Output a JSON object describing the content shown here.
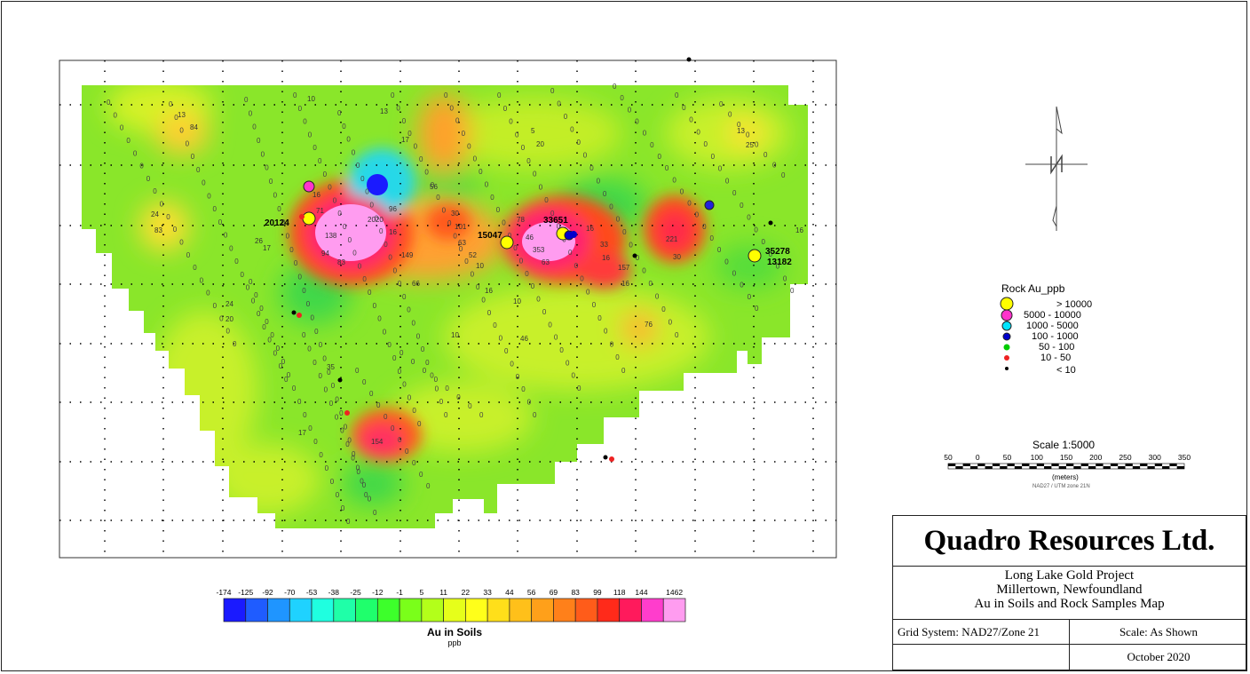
{
  "map": {
    "soil_labels": [
      "0",
      "5",
      "10",
      "13",
      "84",
      "16",
      "17",
      "20",
      "24",
      "25",
      "26",
      "30",
      "33",
      "35",
      "46",
      "52",
      "56",
      "63",
      "66",
      "71",
      "76",
      "78",
      "83",
      "94",
      "96",
      "101",
      "138",
      "149",
      "154",
      "157",
      "221",
      "353",
      "2020"
    ],
    "rock_sample_labels": [
      "20124",
      "15047",
      "33651",
      "35278",
      "13182"
    ]
  },
  "rock_legend": {
    "title": "Rock Au_ppb",
    "items": [
      {
        "label": "> 10000",
        "color": "#ffff00",
        "size": "large"
      },
      {
        "label": "5000  -  10000",
        "color": "#ff33cc",
        "size": "large"
      },
      {
        "label": "1000  -  5000",
        "color": "#00e5ff",
        "size": "medium"
      },
      {
        "label": "100  -  1000",
        "color": "#0000cc",
        "size": "medium"
      },
      {
        "label": "50  -  100",
        "color": "#00cc00",
        "size": "small"
      },
      {
        "label": "10  -  50",
        "color": "#ee2222",
        "size": "small"
      },
      {
        "label": "< 10",
        "color": "#000000",
        "size": "tiny"
      }
    ]
  },
  "scale_bar": {
    "title": "Scale 1:5000",
    "ticks": [
      "50",
      "0",
      "50",
      "100",
      "150",
      "200",
      "250",
      "300",
      "350"
    ],
    "unit": "(meters)",
    "note": "NAD27 / UTM zone 21N"
  },
  "color_bar": {
    "ticks": [
      "-174",
      "-125",
      "-92",
      "-70",
      "-53",
      "-38",
      "-25",
      "-12",
      "-1",
      "5",
      "11",
      "22",
      "33",
      "44",
      "56",
      "69",
      "83",
      "99",
      "118",
      "144",
      "1462"
    ],
    "colors": [
      "#1a1aff",
      "#1f5cff",
      "#1f95ff",
      "#1fd2ff",
      "#1fffe0",
      "#1fffa8",
      "#1fff6c",
      "#3dff2b",
      "#7aff1a",
      "#b3ff1a",
      "#e6ff1a",
      "#ffff1a",
      "#ffdf1a",
      "#ffc01a",
      "#ffa01a",
      "#ff801a",
      "#ff5c1a",
      "#ff2a1a",
      "#ff1a5c",
      "#ff3dcc",
      "#ff9cf0"
    ],
    "title": "Au in Soils",
    "unit": "ppb"
  },
  "title_block": {
    "company": "Quadro Resources Ltd.",
    "project_line1": "Long Lake Gold Project",
    "project_line2": "Millertown, Newfoundland",
    "project_line3": "Au in Soils and Rock Samples Map",
    "grid_system": "Grid System: NAD27/Zone 21",
    "scale": "Scale: As Shown",
    "date": "October 2020"
  },
  "north_arrow": {
    "label": "N"
  }
}
